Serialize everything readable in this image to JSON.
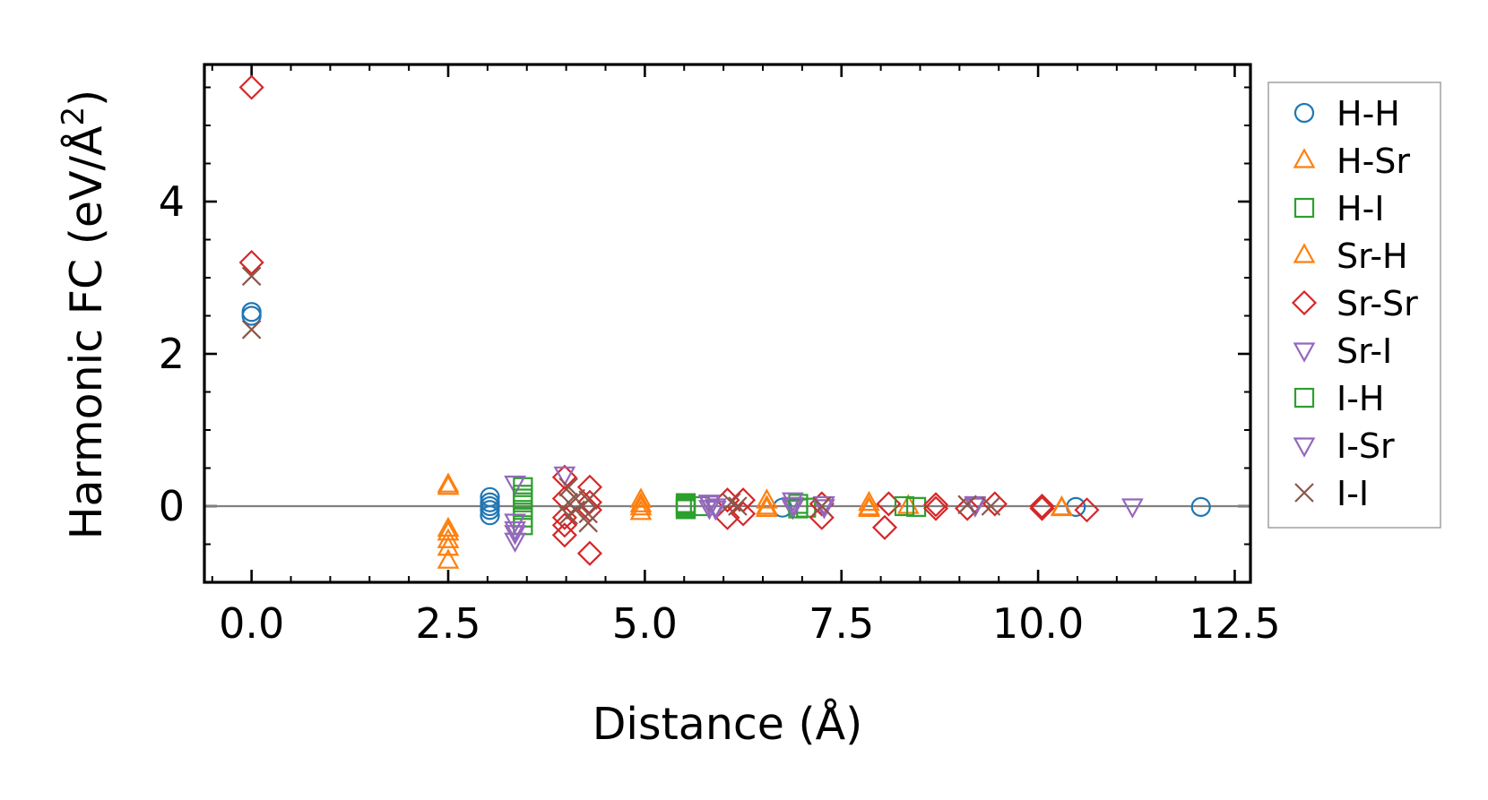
{
  "chart_data": {
    "type": "scatter",
    "xlabel": "Distance (Å)",
    "ylabel": "Harmonic FC (eV/Å²)",
    "ylabel_parts": {
      "main": "Harmonic FC (eV/Å",
      "sup": "2",
      "tail": ")"
    },
    "xlim": [
      -0.6,
      12.7
    ],
    "ylim": [
      -1.0,
      5.8
    ],
    "xticks": [
      0.0,
      2.5,
      5.0,
      7.5,
      10.0,
      12.5
    ],
    "xtick_labels": [
      "0.0",
      "2.5",
      "5.0",
      "7.5",
      "10.0",
      "12.5"
    ],
    "yticks": [
      0,
      2,
      4
    ],
    "ytick_labels": [
      "0",
      "2",
      "4"
    ],
    "grid": false,
    "zero_line": 0,
    "legend_position": "outside-right",
    "series": [
      {
        "name": "H-H",
        "marker": "circle",
        "color": "#1f77b4",
        "x": [
          0.0,
          0.0,
          3.03,
          3.03,
          3.03,
          3.03,
          3.03,
          6.75,
          10.48,
          12.07
        ],
        "y": [
          2.55,
          2.5,
          0.12,
          0.05,
          0.0,
          -0.05,
          -0.12,
          -0.02,
          -0.01,
          -0.01
        ]
      },
      {
        "name": "H-Sr",
        "marker": "triangle-up",
        "color": "#ff7f0e",
        "x": [
          2.5,
          2.5,
          2.5,
          2.5,
          2.5,
          4.95,
          4.95,
          4.95,
          6.55,
          6.55,
          7.85,
          7.85,
          8.35,
          10.3
        ],
        "y": [
          0.28,
          -0.3,
          -0.45,
          -0.55,
          -0.72,
          0.08,
          -0.02,
          -0.08,
          0.07,
          -0.04,
          0.04,
          -0.04,
          0.0,
          -0.02
        ]
      },
      {
        "name": "H-I",
        "marker": "square",
        "color": "#2ca02c",
        "x": [
          3.45,
          3.45,
          3.45,
          3.45,
          3.45,
          3.45,
          5.52,
          5.52,
          5.52,
          5.7,
          6.95,
          7.05,
          8.45
        ],
        "y": [
          0.25,
          0.15,
          0.05,
          -0.05,
          -0.15,
          -0.25,
          0.04,
          0.0,
          -0.04,
          0.0,
          0.03,
          -0.02,
          -0.01
        ]
      },
      {
        "name": "Sr-H",
        "marker": "triangle-up",
        "color": "#ff7f0e",
        "x": [
          2.5,
          2.5,
          4.95,
          6.55,
          7.85,
          10.3
        ],
        "y": [
          0.25,
          -0.35,
          0.02,
          -0.01,
          -0.02,
          -0.03
        ]
      },
      {
        "name": "Sr-Sr",
        "marker": "diamond",
        "color": "#d62728",
        "x": [
          0.0,
          0.0,
          3.98,
          3.98,
          3.98,
          3.98,
          3.98,
          4.3,
          4.3,
          4.3,
          4.3,
          6.05,
          6.05,
          6.25,
          6.25,
          7.25,
          7.25,
          8.05,
          8.1,
          8.7,
          8.7,
          9.1,
          9.45,
          10.05,
          10.05,
          10.62
        ],
        "y": [
          5.5,
          3.2,
          0.38,
          0.1,
          -0.15,
          -0.25,
          -0.38,
          0.25,
          0.05,
          -0.05,
          -0.62,
          0.08,
          -0.15,
          0.08,
          -0.1,
          0.03,
          -0.15,
          -0.28,
          0.03,
          0.02,
          -0.03,
          -0.03,
          0.03,
          0.0,
          -0.03,
          -0.05
        ]
      },
      {
        "name": "Sr-I",
        "marker": "triangle-down",
        "color": "#9467bd",
        "x": [
          3.35,
          3.35,
          3.35,
          3.35,
          3.98,
          5.82,
          5.82,
          5.9,
          6.88,
          6.88,
          7.28,
          9.2,
          11.2
        ],
        "y": [
          0.3,
          -0.2,
          -0.35,
          -0.45,
          0.42,
          0.05,
          -0.02,
          0.0,
          0.08,
          -0.02,
          0.03,
          0.03,
          0.0
        ]
      },
      {
        "name": "I-H",
        "marker": "square",
        "color": "#2ca02c",
        "x": [
          3.45,
          5.52,
          5.52,
          6.95,
          8.3
        ],
        "y": [
          0.1,
          0.02,
          -0.02,
          -0.03,
          0.0
        ]
      },
      {
        "name": "I-Sr",
        "marker": "triangle-down",
        "color": "#9467bd",
        "x": [
          3.35,
          5.82,
          5.9,
          6.88,
          7.28,
          9.2
        ],
        "y": [
          -0.3,
          0.04,
          -0.03,
          0.02,
          -0.01,
          0.01
        ]
      },
      {
        "name": "I-I",
        "marker": "x",
        "color": "#8c564b",
        "x": [
          0.0,
          0.0,
          4.03,
          4.03,
          4.03,
          4.12,
          4.12,
          4.28,
          4.28,
          4.28,
          6.1,
          6.18,
          7.25,
          9.1,
          9.4
        ],
        "y": [
          3.02,
          2.32,
          0.25,
          0.05,
          -0.12,
          0.1,
          -0.05,
          0.08,
          -0.1,
          -0.22,
          0.05,
          0.0,
          0.0,
          0.02,
          0.0
        ]
      }
    ]
  }
}
